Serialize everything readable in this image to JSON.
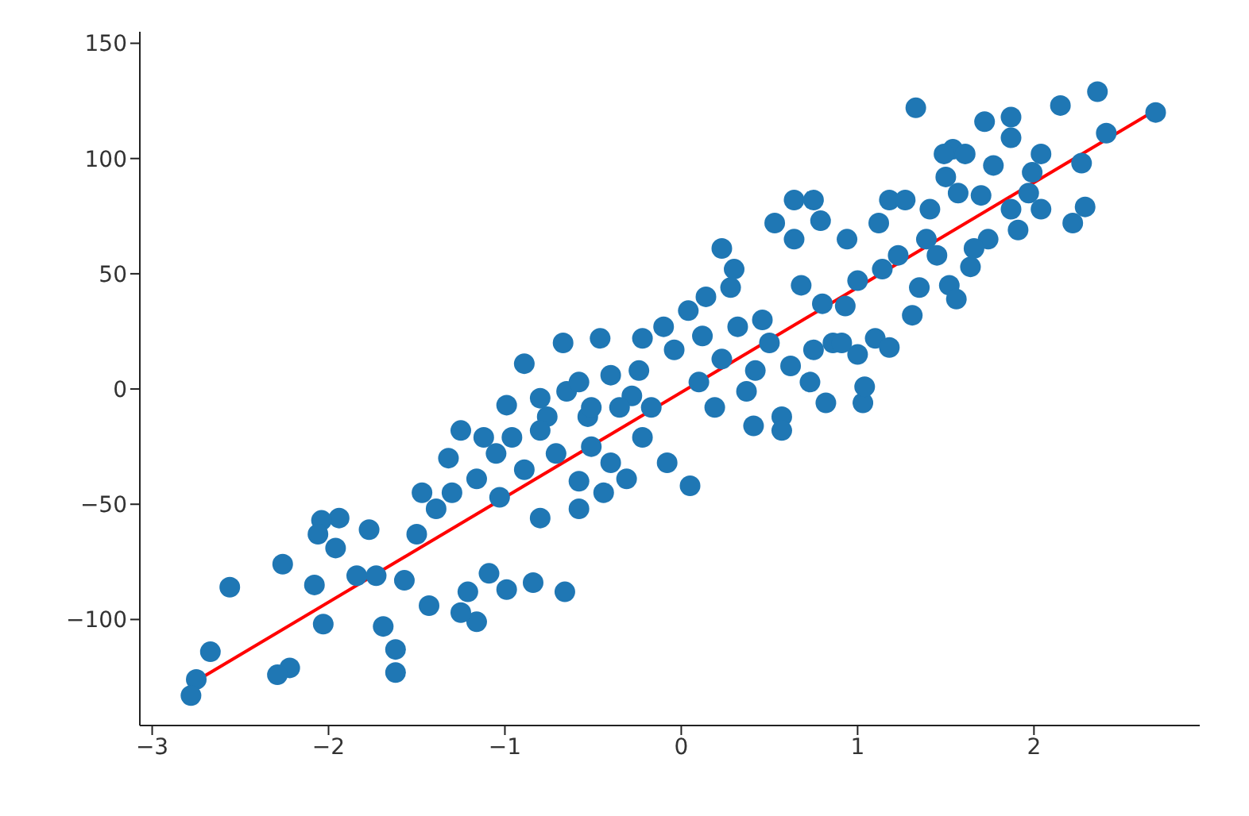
{
  "chart_data": {
    "type": "scatter",
    "xlim": [
      -3.07,
      2.94
    ],
    "ylim": [
      -146,
      155
    ],
    "xticks": [
      {
        "value": -3,
        "label": "−3"
      },
      {
        "value": -2,
        "label": "−2"
      },
      {
        "value": -1,
        "label": "−1"
      },
      0,
      1,
      2
    ],
    "yticks": [
      {
        "value": -100,
        "label": "−100"
      },
      {
        "value": -50,
        "label": "−50"
      },
      0,
      50,
      100,
      150
    ],
    "marker": "circle",
    "series": [
      {
        "color": "#1f77b4",
        "x": [
          2.69,
          2.36,
          2.15,
          1.33,
          1.72,
          1.87,
          1.87,
          2.04,
          2.41,
          2.27,
          2.29,
          2.22,
          1.77,
          1.54,
          1.61,
          1.49,
          1.7,
          1.87,
          1.91,
          1.74,
          1.64,
          1.66,
          1.45,
          1.52,
          1.56,
          1.31,
          1.35,
          1.5,
          1.41,
          1.18,
          1.27,
          1.12,
          0.94,
          0.79,
          0.64,
          1.0,
          1.14,
          0.93,
          0.68,
          0.8,
          1.1,
          0.75,
          1.0,
          0.57,
          0.57,
          1.03,
          1.04,
          0.82,
          0.42,
          0.41,
          0.14,
          0.12,
          0.28,
          0.46,
          0.32,
          0.62,
          0.73,
          0.86,
          0.5,
          0.37,
          0.23,
          0.1,
          0.19,
          0.05,
          -0.08,
          -0.22,
          -0.17,
          -0.28,
          -0.24,
          -0.04,
          -0.1,
          0.04,
          -0.4,
          -0.46,
          -0.22,
          -0.35,
          -0.53,
          -0.51,
          -0.58,
          -0.4,
          -0.71,
          -0.76,
          -0.65,
          -0.8,
          -0.89,
          -0.99,
          -0.96,
          -0.89,
          -1.05,
          -1.16,
          -1.12,
          -1.25,
          -1.32,
          -1.3,
          -1.03,
          -0.8,
          -0.66,
          -0.84,
          -0.99,
          -1.09,
          -1.21,
          -1.16,
          -1.25,
          -1.43,
          -1.5,
          -1.57,
          -1.62,
          -1.62,
          -1.69,
          -1.77,
          -1.73,
          -1.84,
          -1.94,
          -2.03,
          -2.04,
          -2.06,
          -1.96,
          -2.08,
          -2.22,
          -2.29,
          -2.26,
          -2.56,
          -2.67,
          -2.75,
          -2.78,
          -1.47,
          -1.39,
          -0.58,
          -0.44,
          -0.31,
          -0.67,
          -0.58,
          -0.51,
          -0.8,
          0.23,
          0.3,
          0.64,
          0.75,
          0.53,
          0.91,
          1.18,
          1.39,
          1.23,
          1.57,
          1.97,
          2.04,
          1.99
        ],
        "values": [
          120,
          129,
          123,
          122,
          116,
          118,
          109,
          102,
          111,
          98,
          79,
          72,
          97,
          104,
          102,
          102,
          84,
          78,
          69,
          65,
          53,
          61,
          58,
          45,
          39,
          32,
          44,
          92,
          78,
          82,
          82,
          72,
          65,
          73,
          82,
          47,
          52,
          36,
          45,
          37,
          22,
          17,
          15,
          -12,
          -18,
          -6,
          1,
          -6,
          8,
          -16,
          40,
          23,
          44,
          30,
          27,
          10,
          3,
          20,
          20,
          -1,
          13,
          3,
          -8,
          -42,
          -32,
          -21,
          -8,
          -3,
          8,
          17,
          27,
          34,
          6,
          22,
          22,
          -8,
          -12,
          -25,
          -40,
          -32,
          -28,
          -12,
          -1,
          -4,
          11,
          -7,
          -21,
          -35,
          -28,
          -39,
          -21,
          -18,
          -30,
          -45,
          -47,
          -56,
          -88,
          -84,
          -87,
          -80,
          -88,
          -101,
          -97,
          -94,
          -63,
          -83,
          -113,
          -123,
          -103,
          -61,
          -81,
          -81,
          -56,
          -102,
          -57,
          -63,
          -69,
          -85,
          -121,
          -124,
          -76,
          -86,
          -114,
          -126,
          -133,
          -45,
          -52,
          -52,
          -45,
          -39,
          20,
          3,
          -8,
          -18,
          61,
          52,
          65,
          82,
          72,
          20,
          18,
          65,
          58,
          85,
          85,
          78,
          94
        ]
      },
      {
        "type": "line",
        "marker": "none",
        "color": "#ff0000",
        "x": [
          -2.78,
          2.69
        ],
        "values": [
          -128,
          121
        ]
      }
    ]
  }
}
